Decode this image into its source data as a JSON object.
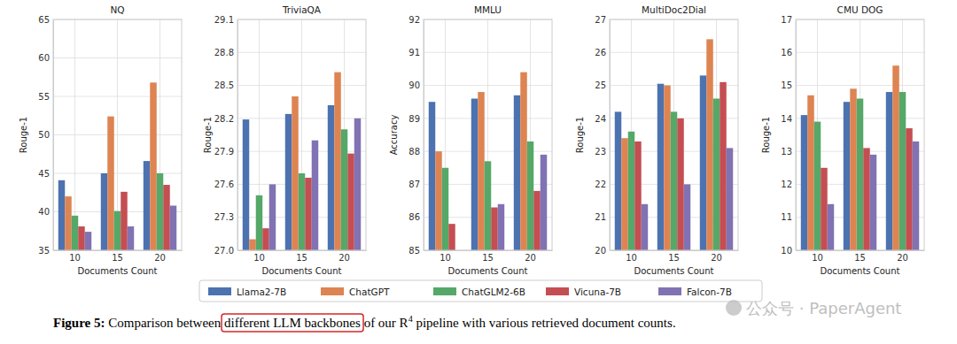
{
  "chart_data": [
    {
      "type": "bar",
      "title": "NQ",
      "x_label": "Documents Count",
      "y_label": "Rouge-1",
      "categories": [
        "10",
        "15",
        "20"
      ],
      "series": [
        {
          "name": "Llama2-7B",
          "color": "#4c72b0",
          "values": [
            44.1,
            45.0,
            46.6
          ]
        },
        {
          "name": "ChatGPT",
          "color": "#dd8452",
          "values": [
            42.0,
            52.4,
            56.8
          ]
        },
        {
          "name": "ChatGLM2-6B",
          "color": "#55a868",
          "values": [
            39.5,
            40.1,
            45.0
          ]
        },
        {
          "name": "Vicuna-7B",
          "color": "#c44e52",
          "values": [
            38.1,
            42.6,
            43.5
          ]
        },
        {
          "name": "Falcon-7B",
          "color": "#8172b3",
          "values": [
            37.4,
            38.1,
            40.8
          ]
        }
      ],
      "ylim": [
        35,
        65
      ],
      "yticks": [
        35,
        40,
        45,
        50,
        55,
        60,
        65
      ],
      "grid": true,
      "legend": "bottom"
    },
    {
      "type": "bar",
      "title": "TriviaQA",
      "x_label": "Documents Count",
      "y_label": "Rouge-1",
      "categories": [
        "10",
        "15",
        "20"
      ],
      "series": [
        {
          "name": "Llama2-7B",
          "color": "#4c72b0",
          "values": [
            28.19,
            28.24,
            28.32
          ]
        },
        {
          "name": "ChatGPT",
          "color": "#dd8452",
          "values": [
            27.1,
            28.4,
            28.62
          ]
        },
        {
          "name": "ChatGLM2-6B",
          "color": "#55a868",
          "values": [
            27.5,
            27.7,
            28.1
          ]
        },
        {
          "name": "Vicuna-7B",
          "color": "#c44e52",
          "values": [
            27.2,
            27.66,
            27.88
          ]
        },
        {
          "name": "Falcon-7B",
          "color": "#8172b3",
          "values": [
            27.6,
            28.0,
            28.2
          ]
        }
      ],
      "ylim": [
        27.0,
        29.1
      ],
      "yticks": [
        {
          "value": 27.0,
          "label": "27.0"
        },
        27.3,
        27.6,
        27.9,
        28.2,
        28.5,
        28.8,
        29.1
      ],
      "grid": true
    },
    {
      "type": "bar",
      "title": "MMLU",
      "x_label": "Documents Count",
      "y_label": "Accuracy",
      "categories": [
        "10",
        "15",
        "20"
      ],
      "series": [
        {
          "name": "Llama2-7B",
          "color": "#4c72b0",
          "values": [
            89.5,
            89.6,
            89.7
          ]
        },
        {
          "name": "ChatGPT",
          "color": "#dd8452",
          "values": [
            88.0,
            89.8,
            90.4
          ]
        },
        {
          "name": "ChatGLM2-6B",
          "color": "#55a868",
          "values": [
            87.5,
            87.7,
            88.3
          ]
        },
        {
          "name": "Vicuna-7B",
          "color": "#c44e52",
          "values": [
            85.8,
            86.3,
            86.8
          ]
        },
        {
          "name": "Falcon-7B",
          "color": "#8172b3",
          "values": [
            null,
            86.4,
            87.9
          ]
        }
      ],
      "ylim": [
        85,
        92
      ],
      "yticks": [
        85,
        86,
        87,
        88,
        89,
        90,
        91,
        92
      ],
      "grid": true
    },
    {
      "type": "bar",
      "title": "MultiDoc2Dial",
      "x_label": "Documents Count",
      "y_label": "Rouge-1",
      "categories": [
        "10",
        "15",
        "20"
      ],
      "series": [
        {
          "name": "Llama2-7B",
          "color": "#4c72b0",
          "values": [
            24.2,
            25.05,
            25.3
          ]
        },
        {
          "name": "ChatGPT",
          "color": "#dd8452",
          "values": [
            23.4,
            25.0,
            26.4
          ]
        },
        {
          "name": "ChatGLM2-6B",
          "color": "#55a868",
          "values": [
            23.6,
            24.2,
            24.6
          ]
        },
        {
          "name": "Vicuna-7B",
          "color": "#c44e52",
          "values": [
            23.3,
            24.0,
            25.1
          ]
        },
        {
          "name": "Falcon-7B",
          "color": "#8172b3",
          "values": [
            21.4,
            22.0,
            23.1
          ]
        }
      ],
      "ylim": [
        20,
        27
      ],
      "yticks": [
        20,
        21,
        22,
        23,
        24,
        25,
        26,
        27
      ],
      "grid": true
    },
    {
      "type": "bar",
      "title": "CMU DOG",
      "x_label": "Documents Count",
      "y_label": "Rouge-1",
      "categories": [
        "10",
        "15",
        "20"
      ],
      "series": [
        {
          "name": "Llama2-7B",
          "color": "#4c72b0",
          "values": [
            14.1,
            14.5,
            14.8
          ]
        },
        {
          "name": "ChatGPT",
          "color": "#dd8452",
          "values": [
            14.7,
            14.9,
            15.6
          ]
        },
        {
          "name": "ChatGLM2-6B",
          "color": "#55a868",
          "values": [
            13.9,
            14.6,
            14.8
          ]
        },
        {
          "name": "Vicuna-7B",
          "color": "#c44e52",
          "values": [
            12.5,
            13.1,
            13.7
          ]
        },
        {
          "name": "Falcon-7B",
          "color": "#8172b3",
          "values": [
            11.4,
            12.9,
            13.3
          ]
        }
      ],
      "ylim": [
        10,
        17
      ],
      "yticks": [
        10,
        11,
        12,
        13,
        14,
        15,
        16,
        17
      ],
      "grid": true
    }
  ],
  "caption": {
    "label": "Figure 5:",
    "before": " Comparison between ",
    "highlight": "different LLM backbones",
    "middle": " of our R",
    "superscript": "4",
    "after": " pipeline with various retrieved document counts."
  },
  "watermark": "公众号 · PaperAgent"
}
